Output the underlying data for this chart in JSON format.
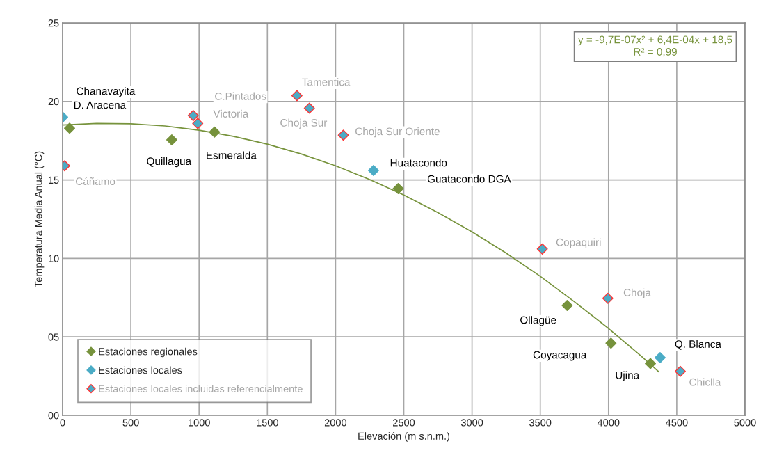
{
  "chart_data": {
    "type": "scatter",
    "xlabel": "Elevación (m s.n.m.)",
    "ylabel": "Temperatura Media Anual (°C)",
    "xlim": [
      0,
      5000
    ],
    "xticks": [
      0,
      500,
      1000,
      1500,
      2000,
      2500,
      3000,
      3500,
      4000,
      4500,
      5000
    ],
    "ylim": [
      0,
      25
    ],
    "yticks": [
      {
        "value": 0,
        "label": "00"
      },
      {
        "value": 5,
        "label": "05"
      },
      10,
      15,
      20,
      25
    ],
    "grid": true,
    "legend": "bottom left",
    "marker": "diamond",
    "series": [
      {
        "name": "Estaciones regionales",
        "color": "#76923c",
        "x": [
          51,
          800,
          1113,
          2459,
          3697,
          4018,
          4307
        ],
        "values": [
          18.3,
          17.55,
          18.05,
          14.45,
          7.0,
          4.6,
          3.3
        ]
      },
      {
        "name": "Estaciones locales",
        "color": "#4bacc6",
        "x": [
          0,
          2278,
          4378
        ],
        "values": [
          19.0,
          15.6,
          3.68
        ]
      },
      {
        "name": "Estaciones locales incluidas referencialmente",
        "color": "#4bacc6",
        "x": [
          15,
          957,
          990,
          1717,
          1808,
          2057,
          3515,
          3995,
          4526
        ],
        "values": [
          15.9,
          19.1,
          18.6,
          20.37,
          19.57,
          17.85,
          10.6,
          7.46,
          2.8
        ]
      },
      {
        "type": "line",
        "marker": "none",
        "color": "#77933c",
        "x": [
          0,
          250,
          500,
          750,
          1000,
          1250,
          1500,
          1750,
          2000,
          2250,
          2500,
          2750,
          3000,
          3250,
          3500,
          3750,
          4000,
          4250,
          4370
        ],
        "values": [
          18.5,
          18.6,
          18.58,
          18.44,
          18.17,
          17.78,
          17.28,
          16.65,
          15.9,
          15.03,
          14.04,
          12.92,
          11.69,
          10.34,
          8.86,
          7.24,
          5.54,
          3.7,
          2.77
        ]
      }
    ],
    "annotations": [
      {
        "text": "Chanavayita",
        "x": 0,
        "y": 19.0
      },
      {
        "text": "D. Aracena",
        "x": 51,
        "y": 18.3
      },
      {
        "text": "Cáñamo",
        "x": 15,
        "y": 15.9
      },
      {
        "text": "Quillagua",
        "x": 800,
        "y": 17.55
      },
      {
        "text": "C.Pintados",
        "x": 957,
        "y": 19.1
      },
      {
        "text": "Victoria",
        "x": 990,
        "y": 18.6
      },
      {
        "text": "Esmeralda",
        "x": 1113,
        "y": 18.05
      },
      {
        "text": "Tamentica",
        "x": 1717,
        "y": 20.37
      },
      {
        "text": "Choja Sur",
        "x": 1808,
        "y": 19.57
      },
      {
        "text": "Choja Sur Oriente",
        "x": 2057,
        "y": 17.85
      },
      {
        "text": "Huatacondo",
        "x": 2278,
        "y": 15.6
      },
      {
        "text": "Guatacondo DGA",
        "x": 2459,
        "y": 14.45
      },
      {
        "text": "Copaquiri",
        "x": 3515,
        "y": 10.6
      },
      {
        "text": "Ollagüe",
        "x": 3697,
        "y": 7.0
      },
      {
        "text": "Choja",
        "x": 3995,
        "y": 7.46
      },
      {
        "text": "Coyacagua",
        "x": 4018,
        "y": 4.6
      },
      {
        "text": "Ujina",
        "x": 4307,
        "y": 3.3
      },
      {
        "text": "Q. Blanca",
        "x": 4378,
        "y": 3.68
      },
      {
        "text": "Chiclla",
        "x": 4526,
        "y": 2.8
      },
      "y = -9,7E-07x² + 6,4E-04x + 18,5",
      "R² = 0,99"
    ]
  }
}
